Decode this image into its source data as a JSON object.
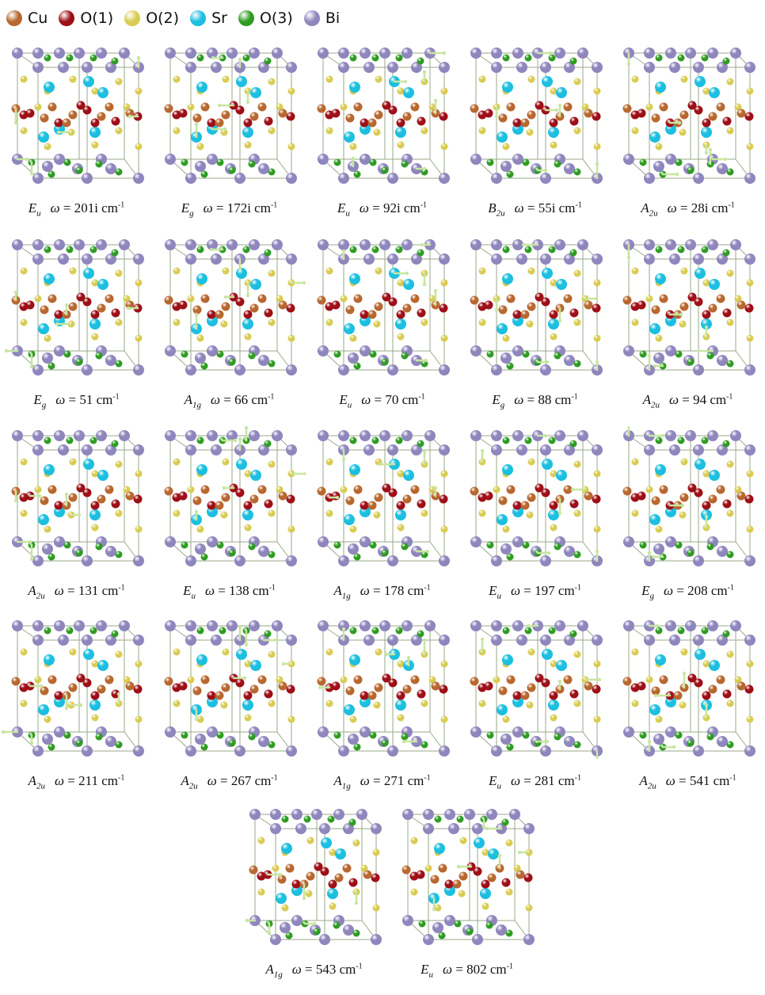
{
  "legend": [
    {
      "label": "Cu",
      "color": "#b8682f"
    },
    {
      "label": "O(1)",
      "color": "#9e0f17"
    },
    {
      "label": "O(2)",
      "color": "#d9cc52"
    },
    {
      "label": "Sr",
      "color": "#1cbfe0"
    },
    {
      "label": "O(3)",
      "color": "#2e9c22"
    },
    {
      "label": "Bi",
      "color": "#8f86bd"
    }
  ],
  "omega_symbol": "ω",
  "equals": "=",
  "unit": "cm",
  "unit_exp": "-1",
  "arrow_color": "#c8e6a0",
  "modes": [
    {
      "sym": "E",
      "sub": "u",
      "value": "201i"
    },
    {
      "sym": "E",
      "sub": "g",
      "value": "172i"
    },
    {
      "sym": "E",
      "sub": "u",
      "value": "92i"
    },
    {
      "sym": "B",
      "sub": "2u",
      "value": "55i"
    },
    {
      "sym": "A",
      "sub": "2u",
      "value": "28i"
    },
    {
      "sym": "E",
      "sub": "g",
      "value": "51"
    },
    {
      "sym": "A",
      "sub": "1g",
      "value": "66"
    },
    {
      "sym": "E",
      "sub": "u",
      "value": "70"
    },
    {
      "sym": "E",
      "sub": "g",
      "value": "88"
    },
    {
      "sym": "A",
      "sub": "2u",
      "value": "94"
    },
    {
      "sym": "A",
      "sub": "2u",
      "value": "131"
    },
    {
      "sym": "E",
      "sub": "u",
      "value": "138"
    },
    {
      "sym": "A",
      "sub": "1g",
      "value": "178"
    },
    {
      "sym": "E",
      "sub": "u",
      "value": "197"
    },
    {
      "sym": "E",
      "sub": "g",
      "value": "208"
    },
    {
      "sym": "A",
      "sub": "2u",
      "value": "211"
    },
    {
      "sym": "A",
      "sub": "2u",
      "value": "267"
    },
    {
      "sym": "A",
      "sub": "1g",
      "value": "271"
    },
    {
      "sym": "E",
      "sub": "u",
      "value": "281"
    },
    {
      "sym": "A",
      "sub": "2u",
      "value": "541"
    },
    {
      "sym": "A",
      "sub": "1g",
      "value": "543"
    },
    {
      "sym": "E",
      "sub": "u",
      "value": "802"
    }
  ]
}
